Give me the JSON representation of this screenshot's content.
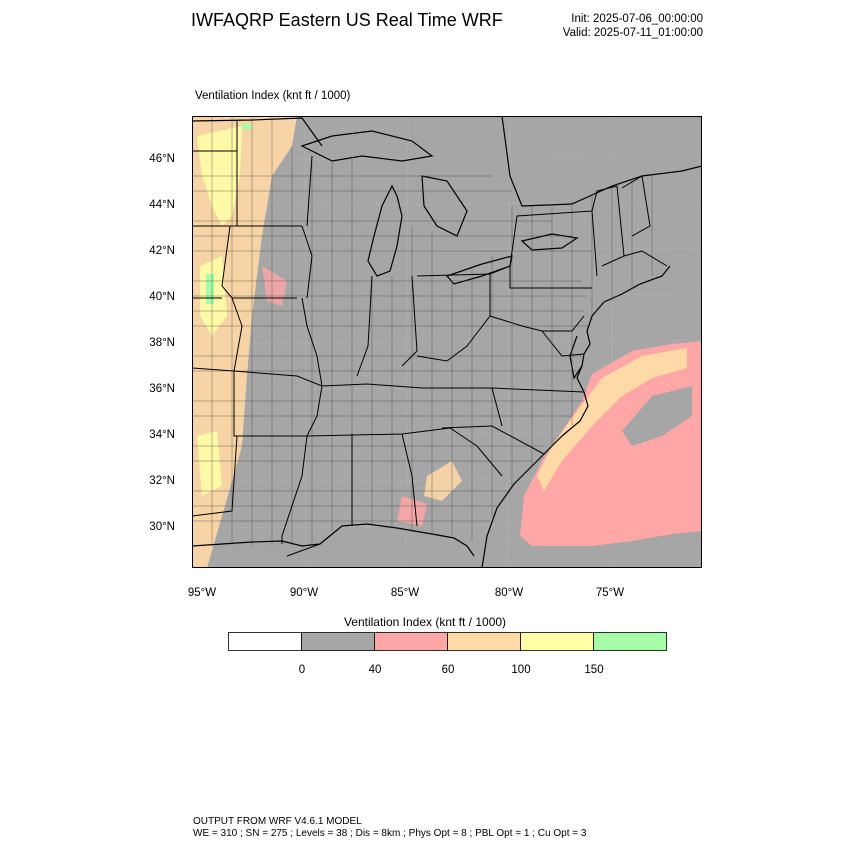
{
  "header": {
    "title": "IWFAQRP Eastern US Real Time WRF",
    "init": "Init: 2025-07-06_00:00:00",
    "valid": "Valid: 2025-07-11_01:00:00"
  },
  "map": {
    "field_label": "Ventilation Index   (knt ft / 1000)",
    "lat_labels": [
      "46°N",
      "44°N",
      "42°N",
      "40°N",
      "38°N",
      "36°N",
      "34°N",
      "32°N",
      "30°N"
    ],
    "lon_labels": [
      "95°W",
      "90°W",
      "85°W",
      "80°W",
      "75°W"
    ]
  },
  "colorbar": {
    "title": "Ventilation Index  (knt ft / 1000)",
    "colors": [
      "#ffffff",
      "#a6a6a6",
      "#ffa6a6",
      "#ffd9a6",
      "#ffffa6",
      "#a6ffa6"
    ],
    "tick_labels": [
      "0",
      "40",
      "60",
      "100",
      "150"
    ]
  },
  "footer": {
    "line1": "OUTPUT FROM WRF V4.6.1 MODEL",
    "line2": "WE = 310 ; SN = 275 ; Levels = 38 ; Dis = 8km ; Phys Opt = 8 ; PBL Opt = 1 ; Cu Opt = 3"
  }
}
